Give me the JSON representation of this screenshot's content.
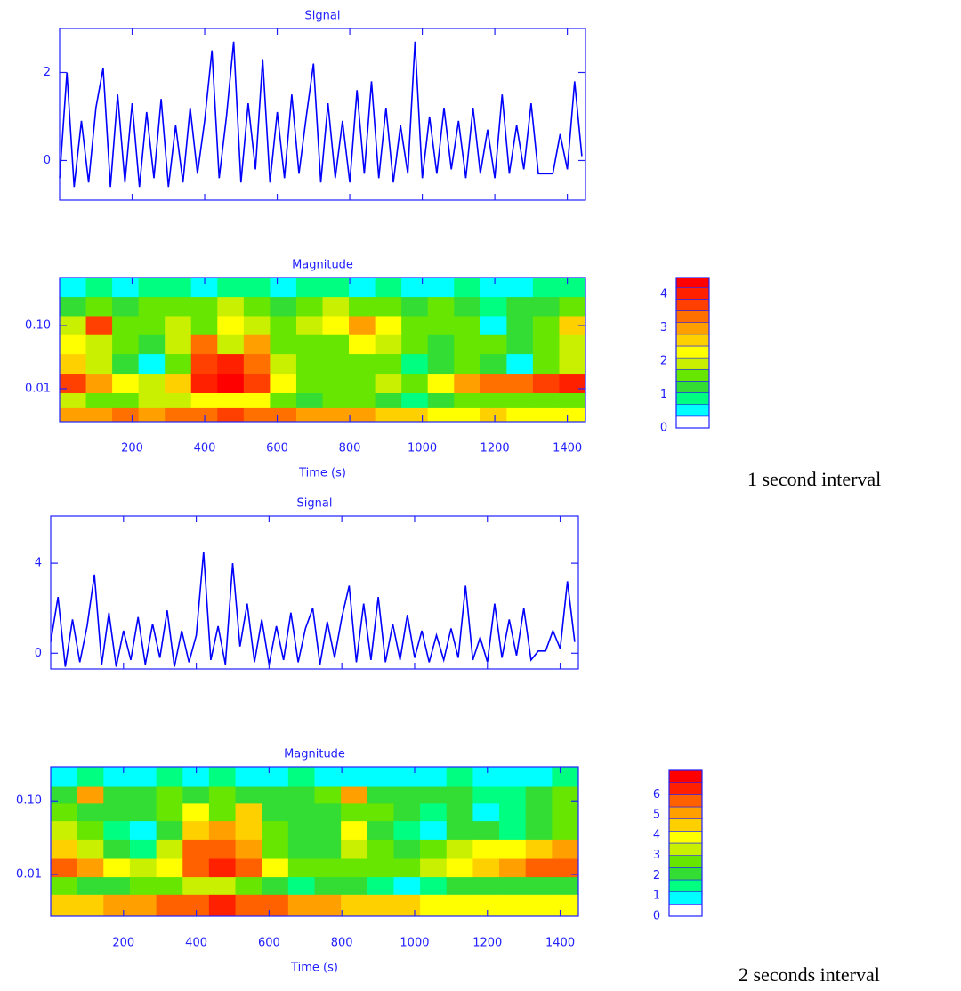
{
  "captions": [
    "1 second interval",
    "2 seconds interval"
  ],
  "chart_data": [
    {
      "type": "line",
      "title": "Signal",
      "color": "#0000ff",
      "x": [
        0,
        20,
        40,
        60,
        80,
        100,
        120,
        140,
        160,
        180,
        200,
        220,
        240,
        260,
        280,
        300,
        320,
        340,
        360,
        380,
        400,
        420,
        440,
        460,
        480,
        500,
        520,
        540,
        560,
        580,
        600,
        620,
        640,
        660,
        680,
        700,
        720,
        740,
        760,
        780,
        800,
        820,
        840,
        860,
        880,
        900,
        920,
        940,
        960,
        980,
        1000,
        1020,
        1040,
        1060,
        1080,
        1100,
        1120,
        1140,
        1160,
        1180,
        1200,
        1220,
        1240,
        1260,
        1280,
        1300,
        1320,
        1340,
        1360,
        1380,
        1400,
        1420,
        1440
      ],
      "values": [
        -0.4,
        2.0,
        -0.6,
        0.9,
        -0.5,
        1.2,
        2.1,
        -0.6,
        1.5,
        -0.5,
        1.3,
        -0.6,
        1.1,
        -0.4,
        1.4,
        -0.6,
        0.8,
        -0.5,
        1.2,
        -0.3,
        0.9,
        2.5,
        -0.4,
        1.0,
        2.7,
        -0.5,
        1.3,
        -0.2,
        2.3,
        -0.5,
        1.1,
        -0.4,
        1.5,
        -0.3,
        1.0,
        2.2,
        -0.5,
        1.3,
        -0.4,
        0.9,
        -0.5,
        1.6,
        -0.3,
        1.8,
        -0.4,
        1.2,
        -0.5,
        0.8,
        -0.3,
        2.7,
        -0.4,
        1.0,
        -0.3,
        1.2,
        -0.2,
        0.9,
        -0.4,
        1.2,
        -0.3,
        0.7,
        -0.4,
        1.5,
        -0.3,
        0.8,
        -0.2,
        1.3,
        -0.3,
        -0.3,
        -0.3,
        0.6,
        -0.2,
        1.8,
        0.1
      ],
      "xlim": [
        0,
        1450
      ],
      "xticks": [
        200,
        400,
        600,
        800,
        1000,
        1200,
        1400
      ],
      "ylim": [
        -0.9,
        3
      ],
      "yticks": [
        0,
        2
      ]
    },
    {
      "type": "heatmap",
      "title": "Magnitude",
      "xlabel": "Time (s)",
      "ylog": true,
      "x": [
        36,
        109,
        181,
        254,
        326,
        399,
        471,
        544,
        616,
        689,
        761,
        834,
        906,
        979,
        1051,
        1124,
        1196,
        1269,
        1341,
        1414
      ],
      "y": [
        0.4,
        0.2,
        0.1,
        0.05,
        0.025,
        0.012,
        0.006,
        0.004
      ],
      "z": [
        [
          0.6,
          0.8,
          0.5,
          0.7,
          0.9,
          0.6,
          0.8,
          0.7,
          0.5,
          0.9,
          0.8,
          0.6,
          0.7,
          0.5,
          0.6,
          0.8,
          0.4,
          0.6,
          0.7,
          0.9
        ],
        [
          1.3,
          1.6,
          1.2,
          1.5,
          1.7,
          1.4,
          1.9,
          1.6,
          1.3,
          1.5,
          1.8,
          1.7,
          1.6,
          1.2,
          1.4,
          1.3,
          0.8,
          1.1,
          1.2,
          1.6
        ],
        [
          1.8,
          3.6,
          1.7,
          1.4,
          1.9,
          1.6,
          2.4,
          1.8,
          1.5,
          1.9,
          2.2,
          2.9,
          2.1,
          1.6,
          1.5,
          1.4,
          0.5,
          1.2,
          1.4,
          2.6
        ],
        [
          2.2,
          1.8,
          1.5,
          1.2,
          2.0,
          3.2,
          1.8,
          2.9,
          1.6,
          1.4,
          1.7,
          2.4,
          1.8,
          1.5,
          1.3,
          1.6,
          1.5,
          1.3,
          1.5,
          1.8
        ],
        [
          2.6,
          1.9,
          1.2,
          0.6,
          1.6,
          3.5,
          3.9,
          3.4,
          1.8,
          1.4,
          1.6,
          1.7,
          1.5,
          0.7,
          1.3,
          1.5,
          1.2,
          0.6,
          1.4,
          1.9
        ],
        [
          3.6,
          3.1,
          2.2,
          1.8,
          2.6,
          4.0,
          4.3,
          3.8,
          2.4,
          1.6,
          1.5,
          1.7,
          1.8,
          1.6,
          2.2,
          3.0,
          3.3,
          3.4,
          3.6,
          3.9
        ],
        [
          2.0,
          1.6,
          1.4,
          1.8,
          2.0,
          2.3,
          2.4,
          2.1,
          1.6,
          1.3,
          1.4,
          1.5,
          1.2,
          1.0,
          1.3,
          1.4,
          1.7,
          1.6,
          1.5,
          1.6
        ],
        [
          2.8,
          3.0,
          3.2,
          3.1,
          3.3,
          3.4,
          3.5,
          3.4,
          3.2,
          3.0,
          2.9,
          2.8,
          2.6,
          2.5,
          2.4,
          2.3,
          2.5,
          2.4,
          2.3,
          2.4
        ]
      ],
      "xlim": [
        0,
        1450
      ],
      "xticks": [
        200,
        400,
        600,
        800,
        1000,
        1200,
        1400
      ],
      "ylim": [
        0.003,
        0.58
      ],
      "yticks": [
        0.01,
        {
          "value": 0.1,
          "label": "0.10"
        }
      ],
      "levels": [
        0,
        0.35,
        0.7,
        1.05,
        1.4,
        1.75,
        2.1,
        2.45,
        2.8,
        3.15,
        3.5,
        3.85,
        4.2,
        4.5
      ],
      "colors": [
        "#ffffff",
        "#00ffff",
        "#00ff80",
        "#33dd33",
        "#66e600",
        "#c8f000",
        "#ffff00",
        "#ffd000",
        "#ffa000",
        "#ff7000",
        "#ff4000",
        "#ff2000",
        "#ff0000"
      ],
      "colorbar_ticks": [
        0,
        1,
        2,
        3,
        4
      ]
    },
    {
      "type": "line",
      "title": "Signal",
      "color": "#0000ff",
      "x": [
        0,
        20,
        40,
        60,
        80,
        100,
        120,
        140,
        160,
        180,
        200,
        220,
        240,
        260,
        280,
        300,
        320,
        340,
        360,
        380,
        400,
        420,
        440,
        460,
        480,
        500,
        520,
        540,
        560,
        580,
        600,
        620,
        640,
        660,
        680,
        700,
        720,
        740,
        760,
        780,
        800,
        820,
        840,
        860,
        880,
        900,
        920,
        940,
        960,
        980,
        1000,
        1020,
        1040,
        1060,
        1080,
        1100,
        1120,
        1140,
        1160,
        1180,
        1200,
        1220,
        1240,
        1260,
        1280,
        1300,
        1320,
        1340,
        1360,
        1380,
        1400,
        1420,
        1440
      ],
      "values": [
        0.5,
        2.5,
        -0.6,
        1.5,
        -0.4,
        1.2,
        3.5,
        -0.5,
        1.8,
        -0.6,
        1.0,
        -0.3,
        1.6,
        -0.5,
        1.3,
        -0.2,
        1.9,
        -0.6,
        1.0,
        -0.4,
        0.8,
        4.5,
        -0.3,
        1.2,
        -0.5,
        4.0,
        0.3,
        2.2,
        -0.4,
        1.5,
        -0.5,
        1.2,
        -0.3,
        1.8,
        -0.4,
        1.1,
        2.0,
        -0.5,
        1.4,
        -0.2,
        1.6,
        3.0,
        -0.4,
        2.2,
        -0.3,
        2.5,
        -0.4,
        1.3,
        -0.3,
        1.7,
        -0.2,
        1.0,
        -0.4,
        0.8,
        -0.3,
        1.1,
        -0.2,
        3.0,
        -0.3,
        0.7,
        -0.4,
        2.2,
        -0.2,
        1.5,
        -0.1,
        2.0,
        -0.3,
        0.1,
        0.1,
        1.0,
        0.2,
        3.2,
        0.5
      ],
      "xlim": [
        0,
        1450
      ],
      "xticks": [
        200,
        400,
        600,
        800,
        1000,
        1200,
        1400
      ],
      "ylim": [
        -0.7,
        6.1
      ],
      "yticks": [
        0,
        4
      ]
    },
    {
      "type": "heatmap",
      "title": "Magnitude",
      "xlabel": "Time (s)",
      "ylog": true,
      "x": [
        36,
        109,
        181,
        254,
        326,
        399,
        471,
        544,
        616,
        689,
        761,
        834,
        906,
        979,
        1051,
        1124,
        1196,
        1269,
        1341,
        1414
      ],
      "y": [
        0.2,
        0.12,
        0.07,
        0.04,
        0.022,
        0.012,
        0.007,
        0.004
      ],
      "z": [
        [
          1.0,
          1.2,
          0.8,
          1.0,
          1.3,
          0.9,
          1.2,
          1.0,
          0.8,
          1.3,
          1.1,
          0.9,
          1.0,
          0.7,
          0.9,
          1.2,
          0.6,
          0.8,
          1.0,
          1.3
        ],
        [
          1.9,
          4.8,
          1.8,
          2.1,
          2.4,
          2.0,
          2.6,
          2.2,
          1.9,
          2.1,
          2.5,
          4.9,
          2.3,
          1.8,
          2.0,
          1.9,
          1.2,
          1.6,
          1.8,
          2.6
        ],
        [
          2.5,
          2.2,
          1.8,
          2.0,
          2.6,
          3.8,
          2.4,
          4.5,
          2.0,
          1.9,
          2.3,
          2.7,
          2.4,
          2.0,
          1.6,
          2.0,
          0.9,
          1.5,
          1.8,
          2.6
        ],
        [
          3.0,
          2.4,
          1.6,
          0.8,
          2.3,
          4.6,
          5.2,
          4.3,
          2.4,
          1.8,
          2.2,
          3.8,
          2.0,
          1.2,
          1.0,
          1.8,
          2.0,
          1.5,
          1.8,
          2.4
        ],
        [
          4.5,
          3.4,
          2.2,
          1.4,
          3.0,
          5.4,
          5.6,
          5.2,
          2.8,
          2.0,
          2.2,
          3.2,
          2.6,
          2.0,
          2.4,
          3.2,
          3.6,
          3.8,
          4.2,
          4.8
        ],
        [
          5.6,
          5.2,
          4.0,
          3.4,
          3.8,
          5.6,
          6.2,
          5.5,
          3.6,
          2.6,
          2.4,
          2.6,
          2.8,
          2.6,
          3.0,
          3.8,
          4.6,
          5.0,
          5.4,
          5.8
        ],
        [
          2.6,
          2.2,
          2.0,
          2.6,
          2.8,
          3.0,
          3.2,
          2.6,
          2.0,
          1.6,
          1.8,
          2.0,
          1.4,
          1.0,
          1.6,
          1.8,
          2.2,
          2.0,
          1.8,
          2.0
        ],
        [
          4.2,
          4.6,
          5.0,
          5.2,
          5.6,
          5.8,
          6.0,
          5.8,
          5.4,
          5.0,
          4.8,
          4.6,
          4.4,
          4.2,
          4.0,
          3.8,
          4.0,
          3.8,
          3.7,
          3.8
        ]
      ],
      "xlim": [
        0,
        1450
      ],
      "xticks": [
        200,
        400,
        600,
        800,
        1000,
        1200,
        1400
      ],
      "ylim": [
        0.0027,
        0.29
      ],
      "yticks": [
        0.01,
        {
          "value": 0.1,
          "label": "0.10"
        }
      ],
      "levels": [
        0,
        0.6,
        1.2,
        1.8,
        2.4,
        3.0,
        3.6,
        4.2,
        4.8,
        5.4,
        6.0,
        6.6,
        7.2
      ],
      "colors": [
        "#ffffff",
        "#00ffff",
        "#00ff80",
        "#33dd33",
        "#66e600",
        "#c8f000",
        "#ffff00",
        "#ffd000",
        "#ffa000",
        "#ff6000",
        "#ff2000",
        "#ff0000"
      ],
      "colorbar_ticks": [
        0,
        1,
        2,
        3,
        4,
        5,
        6
      ]
    }
  ]
}
